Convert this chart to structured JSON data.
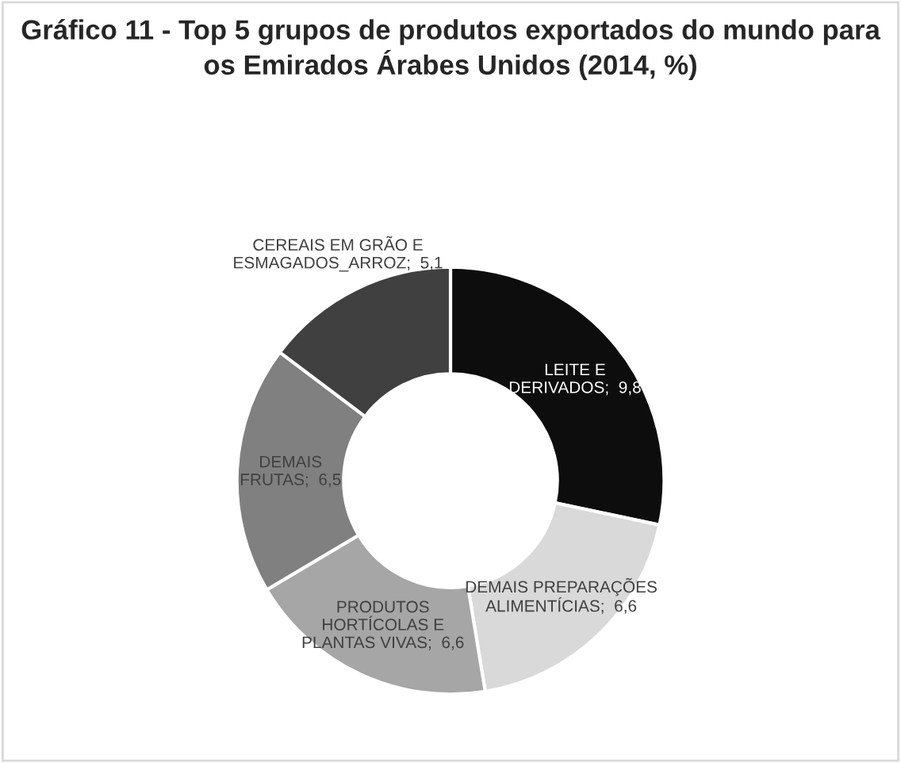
{
  "chart_data": {
    "type": "donut",
    "title": "Gráfico 11 - Top 5 grupos de produtos exportados do mundo para os Emirados Árabes Unidos (2014, %)",
    "categories": [
      "LEITE E\nDERIVADOS",
      "DEMAIS PREPARAÇÕES\nALIMENTÍCIAS",
      "PRODUTOS\nHORTÍCOLAS E\nPLANTAS VIVAS",
      "DEMAIS\nFRUTAS",
      "CEREAIS EM GRÃO E\nESMAGADOS_ARROZ"
    ],
    "values": [
      9.8,
      6.6,
      6.6,
      6.5,
      5.1
    ],
    "value_labels": [
      "9,8",
      "6,6",
      "6,6",
      "6,5",
      "5,1"
    ],
    "colors": [
      "#0d0d0d",
      "#d9d9d9",
      "#a6a6a6",
      "#808080",
      "#404040"
    ],
    "legend": false
  }
}
